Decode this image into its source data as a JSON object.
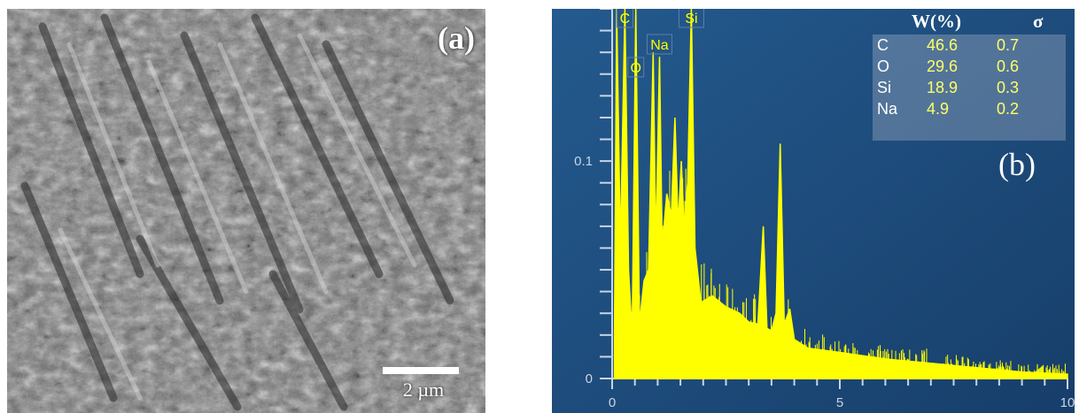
{
  "panel_a": {
    "label": "(a)",
    "scale_bar_label": "2 µm"
  },
  "panel_b": {
    "label": "(b)",
    "composition_table": {
      "header_weight": "W(%)",
      "header_sigma": "σ",
      "rows": [
        {
          "element": "C",
          "weight": "46.6",
          "sigma": "0.7"
        },
        {
          "element": "O",
          "weight": "29.6",
          "sigma": "0.6"
        },
        {
          "element": "Si",
          "weight": "18.9",
          "sigma": "0.3"
        },
        {
          "element": "Na",
          "weight": "4.9",
          "sigma": "0.2"
        }
      ]
    }
  },
  "chart_data": {
    "type": "line",
    "title": "",
    "xlabel": "",
    "ylabel": "",
    "xlim": [
      0,
      10
    ],
    "ylim": [
      0,
      0.17
    ],
    "x_ticks": [
      "0",
      "5",
      "10"
    ],
    "y_ticks": [
      "0",
      "0.1"
    ],
    "grid": false,
    "colors": {
      "background": "#1f4c7c",
      "trace": "#ffff00",
      "axis": "#c8d4e4"
    },
    "peak_labels": [
      {
        "label": "C",
        "x": 0.28
      },
      {
        "label": "O",
        "x": 0.52
      },
      {
        "label": "Na",
        "x": 1.04
      },
      {
        "label": "Si",
        "x": 1.74
      }
    ],
    "series": [
      {
        "x": [
          0.05,
          0.1,
          0.18,
          0.28,
          0.36,
          0.44,
          0.52,
          0.6,
          0.7,
          0.8,
          0.9,
          0.96,
          1.04,
          1.1,
          1.2,
          1.3,
          1.38,
          1.45,
          1.52,
          1.58,
          1.66,
          1.74,
          1.82,
          1.95,
          2.2,
          2.5,
          2.8,
          3.0,
          3.2,
          3.32,
          3.4,
          3.5,
          3.6,
          3.69,
          3.78,
          3.9,
          4.0,
          4.3,
          5.0,
          6.0,
          7.0,
          8.0,
          9.0,
          10.0
        ],
        "y": [
          0.02,
          0.17,
          0.06,
          0.17,
          0.05,
          0.02,
          0.17,
          0.025,
          0.045,
          0.05,
          0.15,
          0.06,
          0.148,
          0.06,
          0.085,
          0.075,
          0.12,
          0.07,
          0.1,
          0.07,
          0.09,
          0.17,
          0.06,
          0.035,
          0.038,
          0.033,
          0.03,
          0.026,
          0.025,
          0.07,
          0.023,
          0.022,
          0.03,
          0.108,
          0.025,
          0.032,
          0.018,
          0.014,
          0.012,
          0.009,
          0.007,
          0.005,
          0.003,
          0.002
        ]
      }
    ]
  }
}
